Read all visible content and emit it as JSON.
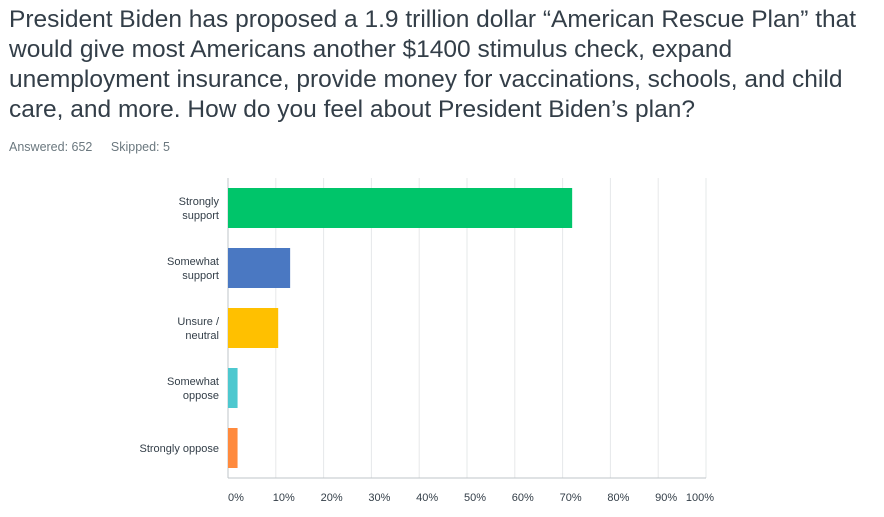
{
  "question": "President Biden has proposed a 1.9 trillion dollar “American Rescue Plan” that would give most Americans another $1400 stimulus check, expand unemployment insurance, provide money for vaccinations, schools, and child care, and more. How do you feel about President Biden’s plan?",
  "stats": {
    "answered": "Answered: 652",
    "skipped": "Skipped: 5"
  },
  "chart_data": {
    "type": "bar",
    "orientation": "horizontal",
    "categories": [
      [
        "Strongly",
        "support"
      ],
      [
        "Somewhat",
        "support"
      ],
      [
        "Unsure /",
        "neutral"
      ],
      [
        "Somewhat",
        "oppose"
      ],
      [
        "Strongly oppose"
      ]
    ],
    "values": [
      72,
      13,
      10.5,
      2,
      2
    ],
    "colors": [
      "#00c56a",
      "#4a78c2",
      "#ffc000",
      "#4dc8cf",
      "#ff8a3d"
    ],
    "xlim": [
      0,
      100
    ],
    "xticks": [
      "0%",
      "10%",
      "20%",
      "30%",
      "40%",
      "50%",
      "60%",
      "70%",
      "80%",
      "90%",
      "100%"
    ],
    "grid": true
  }
}
